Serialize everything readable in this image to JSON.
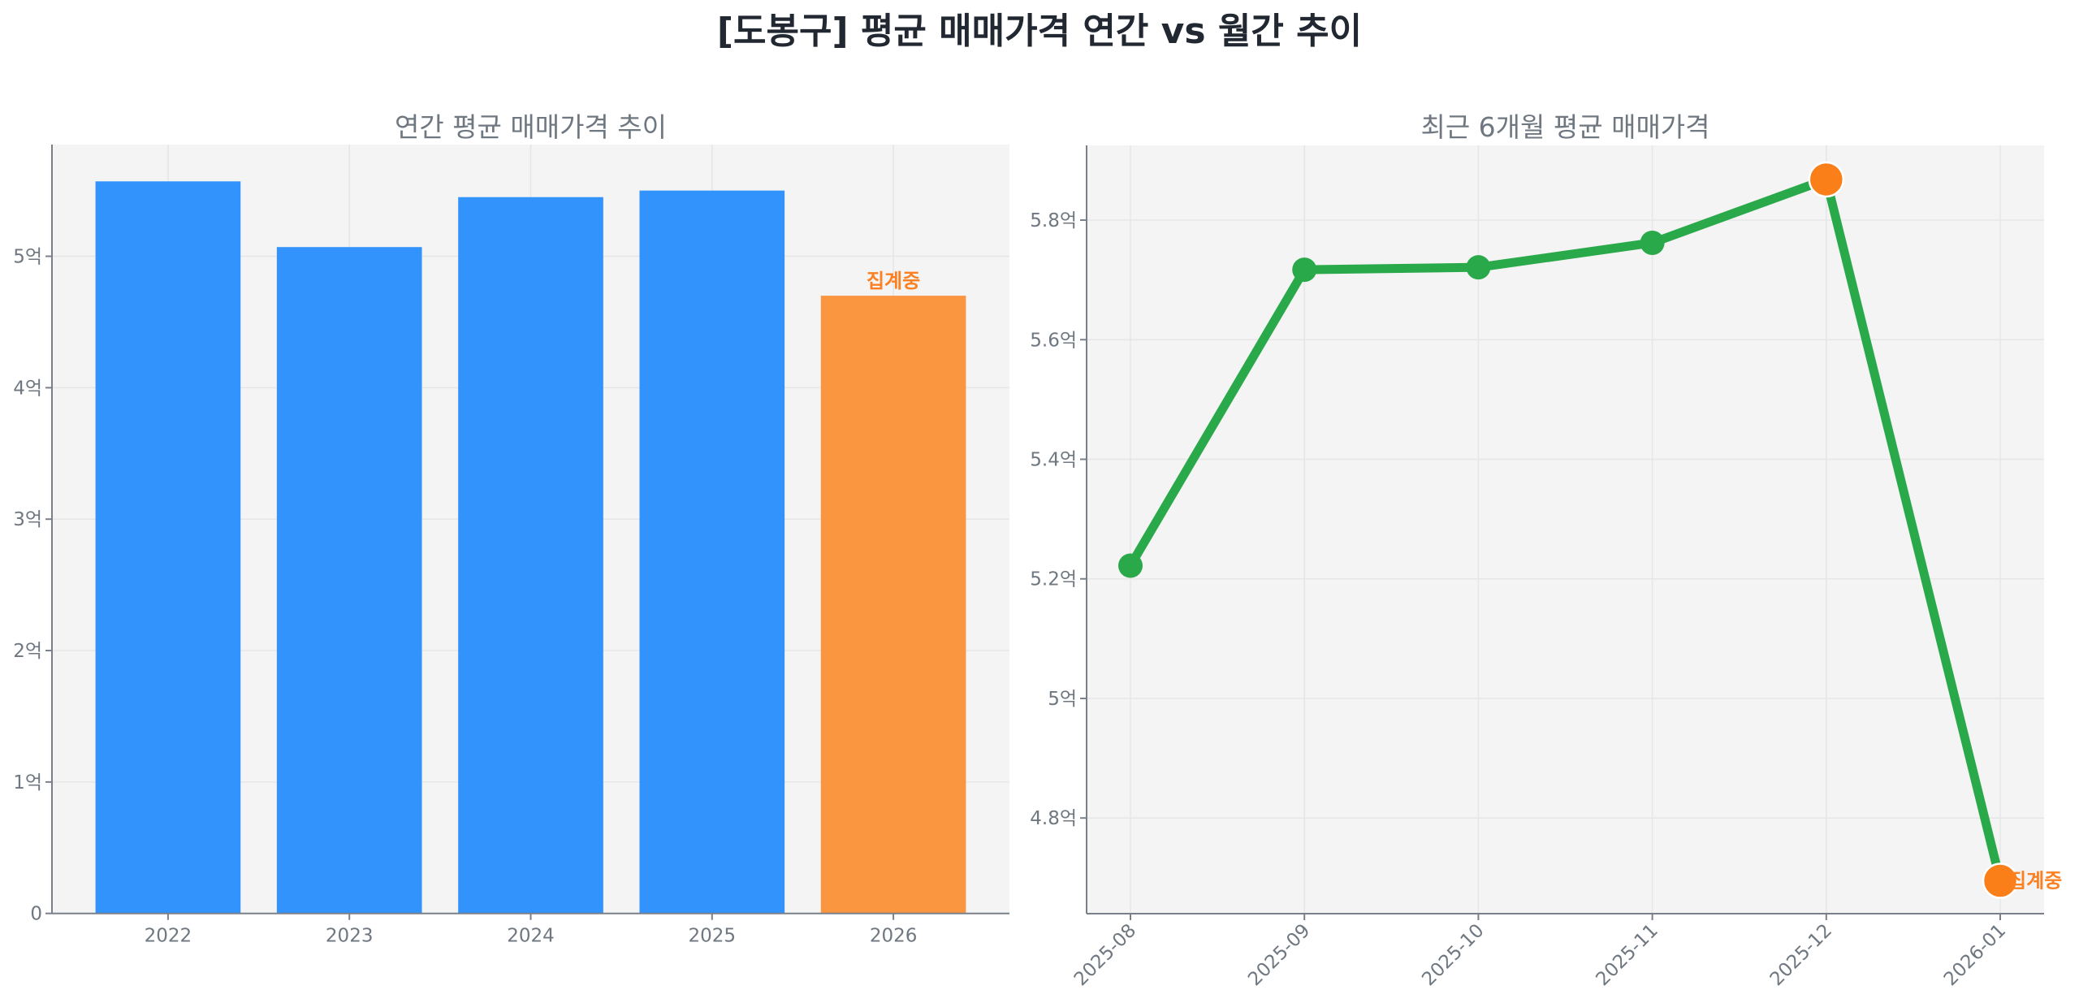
{
  "title": "[도봉구] 평균 매매가격 연간 vs 월간 추이",
  "colors": {
    "bar_complete": "#3193fb",
    "bar_partial": "#f9963f",
    "line": "#2aa94a",
    "marker_highlight": "#fb7f18",
    "annotation": "#fb8022",
    "axis_text": "#6f7780",
    "plot_bg": "#f4f4f4"
  },
  "chart_data": [
    {
      "type": "bar",
      "title": "연간 평균 매매가격 추이",
      "xlabel": "",
      "ylabel": "",
      "categories": [
        "2022",
        "2023",
        "2024",
        "2025",
        "2026"
      ],
      "values": [
        5.57,
        5.07,
        5.45,
        5.5,
        4.7
      ],
      "unit": "억",
      "ylim": [
        0,
        5.85
      ],
      "yticks": [
        0,
        1,
        2,
        3,
        4,
        5
      ],
      "ytick_labels": [
        "0",
        "1억",
        "2억",
        "3억",
        "4억",
        "5억"
      ],
      "bar_colors": [
        "#3193fb",
        "#3193fb",
        "#3193fb",
        "#3193fb",
        "#f9963f"
      ],
      "annotations": [
        {
          "category": "2026",
          "text": "집계중"
        }
      ],
      "grid": true,
      "legend": null
    },
    {
      "type": "line",
      "title": "최근 6개월 평균 매매가격",
      "xlabel": "",
      "ylabel": "",
      "x": [
        "2025-08",
        "2025-09",
        "2025-10",
        "2025-11",
        "2025-12",
        "2026-01"
      ],
      "values": [
        5.222,
        5.717,
        5.721,
        5.762,
        5.868,
        4.695
      ],
      "unit": "억",
      "ylim": [
        4.64,
        5.925
      ],
      "yticks": [
        4.8,
        5.0,
        5.2,
        5.4,
        5.6,
        5.8
      ],
      "ytick_labels": [
        "4.8억",
        "5억",
        "5.2억",
        "5.4억",
        "5.6억",
        "5.8억"
      ],
      "highlighted_points": [
        "2025-12",
        "2026-01"
      ],
      "annotations": [
        {
          "x": "2026-01",
          "text": "집계중"
        }
      ],
      "xtick_rotation": 45,
      "grid": true,
      "legend": null
    }
  ]
}
